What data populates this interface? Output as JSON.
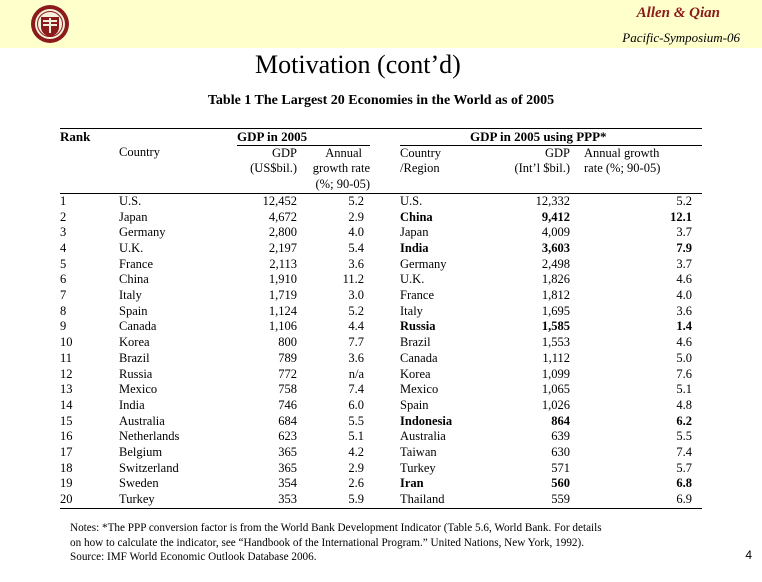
{
  "header": {
    "author": "Allen & Qian",
    "conference": "Pacific-Symposium-06",
    "seal_colors": {
      "outer": "#8b1a1a",
      "inner": "#f5f0dc"
    }
  },
  "slide": {
    "title": "Motivation (cont’d)",
    "page_number": "4"
  },
  "table": {
    "caption": "Table 1  The Largest 20 Economies in the World as of 2005",
    "group_headers": {
      "rank": "Rank",
      "gdp": "GDP in 2005",
      "ppp": "GDP in 2005 using PPP*"
    },
    "col_headers": {
      "country": "Country",
      "gdp": "GDP",
      "gdp_unit": "(US$bil.)",
      "growth": "Annual",
      "growth2": "growth rate",
      "growth3": "(%; 90-05)",
      "region": "Country",
      "region2": "/Region",
      "ppp_gdp": "GDP",
      "ppp_unit": "(Int’l $bil.)",
      "ppp_growth": "Annual growth",
      "ppp_growth2": "rate (%; 90-05)"
    },
    "rows": [
      {
        "rank": "1",
        "country": "U.S.",
        "gdp": "12,452",
        "growth": "5.2",
        "ppp_country": "U.S.",
        "ppp_gdp": "12,332",
        "ppp_growth": "5.2",
        "bold": false
      },
      {
        "rank": "2",
        "country": "Japan",
        "gdp": "4,672",
        "growth": "2.9",
        "ppp_country": "China",
        "ppp_gdp": "9,412",
        "ppp_growth": "12.1",
        "bold": true
      },
      {
        "rank": "3",
        "country": "Germany",
        "gdp": "2,800",
        "growth": "4.0",
        "ppp_country": "Japan",
        "ppp_gdp": "4,009",
        "ppp_growth": "3.7",
        "bold": false
      },
      {
        "rank": "4",
        "country": "U.K.",
        "gdp": "2,197",
        "growth": "5.4",
        "ppp_country": "India",
        "ppp_gdp": "3,603",
        "ppp_growth": "7.9",
        "bold": true
      },
      {
        "rank": "5",
        "country": "France",
        "gdp": "2,113",
        "growth": "3.6",
        "ppp_country": "Germany",
        "ppp_gdp": "2,498",
        "ppp_growth": "3.7",
        "bold": false
      },
      {
        "rank": "6",
        "country": "China",
        "gdp": "1,910",
        "growth": "11.2",
        "ppp_country": "U.K.",
        "ppp_gdp": "1,826",
        "ppp_growth": "4.6",
        "bold": false
      },
      {
        "rank": "7",
        "country": "Italy",
        "gdp": "1,719",
        "growth": "3.0",
        "ppp_country": "France",
        "ppp_gdp": "1,812",
        "ppp_growth": "4.0",
        "bold": false
      },
      {
        "rank": "8",
        "country": "Spain",
        "gdp": "1,124",
        "growth": "5.2",
        "ppp_country": "Italy",
        "ppp_gdp": "1,695",
        "ppp_growth": "3.6",
        "bold": false
      },
      {
        "rank": "9",
        "country": "Canada",
        "gdp": "1,106",
        "growth": "4.4",
        "ppp_country": "Russia",
        "ppp_gdp": "1,585",
        "ppp_growth": "1.4",
        "bold": true
      },
      {
        "rank": "10",
        "country": "Korea",
        "gdp": "800",
        "growth": "7.7",
        "ppp_country": "Brazil",
        "ppp_gdp": "1,553",
        "ppp_growth": "4.6",
        "bold": false
      },
      {
        "rank": "11",
        "country": "Brazil",
        "gdp": "789",
        "growth": "3.6",
        "ppp_country": "Canada",
        "ppp_gdp": "1,112",
        "ppp_growth": "5.0",
        "bold": false
      },
      {
        "rank": "12",
        "country": "Russia",
        "gdp": "772",
        "growth": "n/a",
        "ppp_country": "Korea",
        "ppp_gdp": "1,099",
        "ppp_growth": "7.6",
        "bold": false
      },
      {
        "rank": "13",
        "country": "Mexico",
        "gdp": "758",
        "growth": "7.4",
        "ppp_country": "Mexico",
        "ppp_gdp": "1,065",
        "ppp_growth": "5.1",
        "bold": false
      },
      {
        "rank": "14",
        "country": "India",
        "gdp": "746",
        "growth": "6.0",
        "ppp_country": "Spain",
        "ppp_gdp": "1,026",
        "ppp_growth": "4.8",
        "bold": false
      },
      {
        "rank": "15",
        "country": "Australia",
        "gdp": "684",
        "growth": "5.5",
        "ppp_country": "Indonesia",
        "ppp_gdp": "864",
        "ppp_growth": "6.2",
        "bold": true
      },
      {
        "rank": "16",
        "country": "Netherlands",
        "gdp": "623",
        "growth": "5.1",
        "ppp_country": "Australia",
        "ppp_gdp": "639",
        "ppp_growth": "5.5",
        "bold": false
      },
      {
        "rank": "17",
        "country": "Belgium",
        "gdp": "365",
        "growth": "4.2",
        "ppp_country": "Taiwan",
        "ppp_gdp": "630",
        "ppp_growth": "7.4",
        "bold": false
      },
      {
        "rank": "18",
        "country": "Switzerland",
        "gdp": "365",
        "growth": "2.9",
        "ppp_country": "Turkey",
        "ppp_gdp": "571",
        "ppp_growth": "5.7",
        "bold": false
      },
      {
        "rank": "19",
        "country": "Sweden",
        "gdp": "354",
        "growth": "2.6",
        "ppp_country": "Iran",
        "ppp_gdp": "560",
        "ppp_growth": "6.8",
        "bold": true
      },
      {
        "rank": "20",
        "country": "Turkey",
        "gdp": "353",
        "growth": "5.9",
        "ppp_country": "Thailand",
        "ppp_gdp": "559",
        "ppp_growth": "6.9",
        "bold": false
      }
    ],
    "notes": [
      "Notes: *The PPP conversion factor is from the World Bank Development Indicator (Table 5.6, World Bank. For details",
      "on how to calculate the indicator, see “Handbook of the International Program.” United Nations, New York, 1992).",
      "Source: IMF World Economic Outlook Database 2006."
    ]
  }
}
